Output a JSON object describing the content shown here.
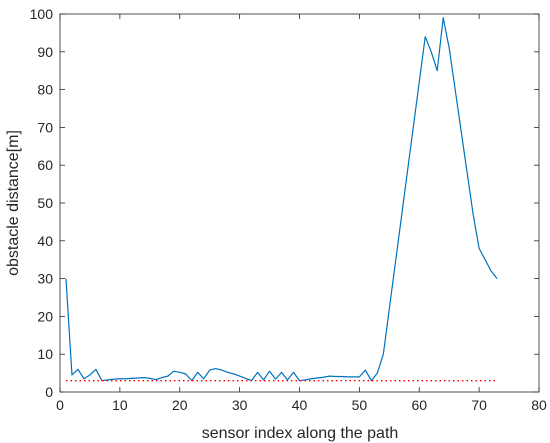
{
  "chart_data": {
    "type": "line",
    "xlabel": "sensor index along the path",
    "ylabel": "obstacle distance[m]",
    "xlim": [
      0,
      80
    ],
    "ylim": [
      0,
      100
    ],
    "xticks": [
      0,
      10,
      20,
      30,
      40,
      50,
      60,
      70,
      80
    ],
    "yticks": [
      0,
      10,
      20,
      30,
      40,
      50,
      60,
      70,
      80,
      90,
      100
    ],
    "grid": false,
    "colors": {
      "series": "#0072BD",
      "threshold": "#FF0000",
      "axes": "#262626"
    },
    "series": [
      {
        "style": "solid",
        "x": [
          1,
          2,
          3,
          4,
          5,
          6,
          7,
          8,
          9,
          10,
          11,
          12,
          13,
          14,
          15,
          16,
          17,
          18,
          19,
          20,
          21,
          22,
          23,
          24,
          25,
          26,
          27,
          28,
          29,
          30,
          31,
          32,
          33,
          34,
          35,
          36,
          37,
          38,
          39,
          40,
          41,
          42,
          43,
          44,
          45,
          46,
          47,
          48,
          49,
          50,
          51,
          52,
          53,
          54,
          55,
          56,
          57,
          58,
          59,
          60,
          61,
          62,
          63,
          64,
          65,
          66,
          67,
          68,
          69,
          70,
          71,
          72,
          73
        ],
        "values": [
          30,
          4.5,
          6,
          3.5,
          4.5,
          6,
          3,
          3.2,
          3.4,
          3.5,
          3.5,
          3.6,
          3.7,
          3.8,
          3.6,
          3.3,
          3.8,
          4.2,
          5.5,
          5.2,
          4.8,
          3,
          5.2,
          3.5,
          5.8,
          6.2,
          5.8,
          5.2,
          4.8,
          4.2,
          3.6,
          3,
          5.2,
          3.2,
          5.5,
          3.4,
          5.2,
          3.2,
          5.2,
          3,
          3.2,
          3.5,
          3.7,
          3.9,
          4.2,
          4.1,
          4.1,
          4,
          4,
          4,
          5.8,
          3,
          5,
          10,
          22,
          34,
          46,
          58,
          70,
          82,
          94,
          90,
          85,
          99,
          91,
          80,
          69,
          58,
          47,
          38,
          35,
          32,
          30
        ]
      },
      {
        "style": "dotted",
        "x": [
          1,
          73
        ],
        "values": [
          3,
          3
        ]
      }
    ]
  }
}
